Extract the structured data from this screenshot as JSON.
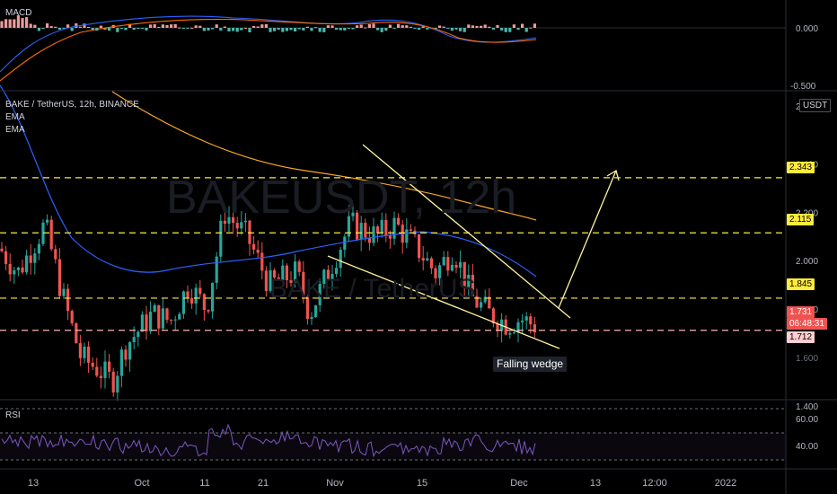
{
  "chart_data": {
    "type": "candlestick",
    "symbol_line": "BAKE / TetherUS, 12h, BINANCE",
    "indicators": [
      "EMA",
      "EMA"
    ],
    "currency_button": "USDT",
    "watermark_big": "BAKEUSDT, 12h",
    "watermark_small": "BAKE / TetherUS",
    "annotation": "Falling wedge",
    "price_axis_ticks": [
      "2.400",
      "2.200",
      "2.000",
      "1.800",
      "1.400"
    ],
    "price_axis_partial": [
      "2",
      "1.600"
    ],
    "time_axis_ticks": [
      "13",
      "Oct",
      "11",
      "21",
      "Nov",
      "15",
      "Dec",
      "13",
      "12:00",
      "2022"
    ],
    "horizontal_levels": [
      {
        "label": "2.343",
        "value": 2.343,
        "color": "#ffeb3b"
      },
      {
        "label": "2.115",
        "value": 2.115,
        "color": "#ffeb3b"
      },
      {
        "label": "1.845",
        "value": 1.845,
        "color": "#ffeb3b"
      },
      {
        "label": "1.712",
        "value": 1.712,
        "color": "#ffb3b3"
      }
    ],
    "current_price": "1.731",
    "countdown": "06:48:31",
    "macd": {
      "title": "MACD",
      "ticks": [
        "0.000",
        "-0.500"
      ]
    },
    "rsi": {
      "title": "RSI",
      "ticks": [
        "60.00",
        "40.00"
      ]
    },
    "colors": {
      "up": "#26a69a",
      "down": "#ef5350",
      "ema_fast": "#2962ff",
      "ema_slow": "#f9a825",
      "rsi": "#7e57c2",
      "levels": "#ffeb3b"
    }
  }
}
